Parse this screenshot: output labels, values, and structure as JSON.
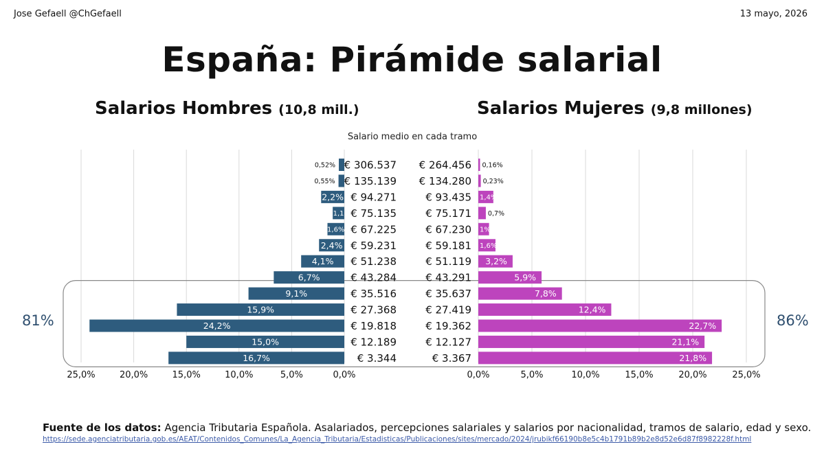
{
  "header": {
    "author": "Jose Gefaell @ChGefaell",
    "date": "13 mayo, 2026"
  },
  "title": "España: Pirámide salarial",
  "men": {
    "heading": "Salarios Hombres",
    "count": "(10,8 mill.)",
    "bracket_share": "81%"
  },
  "women": {
    "heading": "Salarios Mujeres",
    "count": "(9,8 millones)",
    "bracket_share": "86%"
  },
  "center_header": "Salario medio en cada tramo",
  "source": {
    "label": "Fuente de los datos:",
    "text": "Agencia Tributaria Española. Asalariados, percepciones salariales y salarios por nacionalidad, tramos de salario, edad y sexo.",
    "url": "https://sede.agenciatributaria.gob.es/AEAT/Contenidos_Comunes/La_Agencia_Tributaria/Estadisticas/Publicaciones/sites/mercado/2024/jrubikf66190b8e5c4b1791b89b2e8d52e6d87f8982228f.html"
  },
  "colors": {
    "men": "#2e5c7e",
    "women": "#bd44bd",
    "grid": "#d9d9d9",
    "highlight_box": "#888888"
  },
  "chart_data": {
    "type": "bar",
    "orientation": "horizontal-pyramid",
    "axis_ticks_men": [
      "25,0%",
      "20,0%",
      "15,0%",
      "10,0%",
      "5,0%",
      "0,0%"
    ],
    "axis_ticks_women": [
      "0,0%",
      "5,0%",
      "10,0%",
      "15,0%",
      "20,0%",
      "25,0%"
    ],
    "xlim": [
      0,
      25
    ],
    "highlight_rows": [
      8,
      12
    ],
    "rows": [
      {
        "men_salary": "€ 306.537",
        "women_salary": "€ 264.456",
        "men": 0.52,
        "men_label": "0,52%",
        "women": 0.16,
        "women_label": "0,16%"
      },
      {
        "men_salary": "€ 135.139",
        "women_salary": "€ 134.280",
        "men": 0.55,
        "men_label": "0,55%",
        "women": 0.23,
        "women_label": "0,23%"
      },
      {
        "men_salary": "€ 94.271",
        "women_salary": "€ 93.435",
        "men": 2.2,
        "men_label": "2,2%",
        "women": 1.4,
        "women_label": "1,4%"
      },
      {
        "men_salary": "€ 75.135",
        "women_salary": "€ 75.171",
        "men": 1.1,
        "men_label": "1,1",
        "women": 0.7,
        "women_label": "0,7%"
      },
      {
        "men_salary": "€ 67.225",
        "women_salary": "€ 67.230",
        "men": 1.6,
        "men_label": "1,6%",
        "women": 1.0,
        "women_label": "1%"
      },
      {
        "men_salary": "€ 59.231",
        "women_salary": "€ 59.181",
        "men": 2.4,
        "men_label": "2,4%",
        "women": 1.6,
        "women_label": "1,6%"
      },
      {
        "men_salary": "€ 51.238",
        "women_salary": "€ 51.119",
        "men": 4.1,
        "men_label": "4,1%",
        "women": 3.2,
        "women_label": "3,2%"
      },
      {
        "men_salary": "€ 43.284",
        "women_salary": "€ 43.291",
        "men": 6.7,
        "men_label": "6,7%",
        "women": 5.9,
        "women_label": "5,9%"
      },
      {
        "men_salary": "€ 35.516",
        "women_salary": "€ 35.637",
        "men": 9.1,
        "men_label": "9,1%",
        "women": 7.8,
        "women_label": "7,8%"
      },
      {
        "men_salary": "€ 27.368",
        "women_salary": "€ 27.419",
        "men": 15.9,
        "men_label": "15,9%",
        "women": 12.4,
        "women_label": "12,4%"
      },
      {
        "men_salary": "€ 19.818",
        "women_salary": "€ 19.362",
        "men": 24.2,
        "men_label": "24,2%",
        "women": 22.7,
        "women_label": "22,7%"
      },
      {
        "men_salary": "€ 12.189",
        "women_salary": "€ 12.127",
        "men": 15.0,
        "men_label": "15,0%",
        "women": 21.1,
        "women_label": "21,1%"
      },
      {
        "men_salary": "€ 3.344",
        "women_salary": "€ 3.367",
        "men": 16.7,
        "men_label": "16,7%",
        "women": 21.8,
        "women_label": "21,8%"
      }
    ]
  }
}
